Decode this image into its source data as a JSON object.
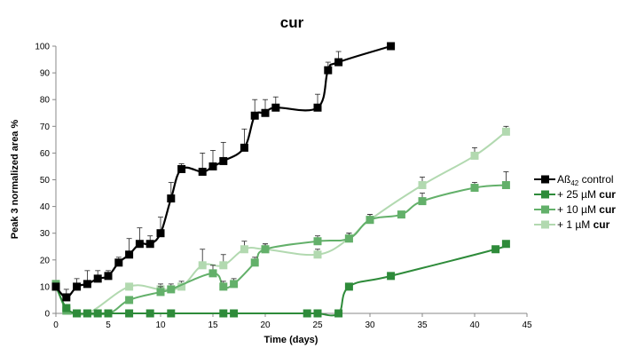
{
  "chart_data": {
    "type": "line",
    "title": "cur",
    "xlabel": "Time (days)",
    "ylabel": "Peak 3 normalized area %",
    "xlim": [
      0,
      45
    ],
    "ylim": [
      0,
      100
    ],
    "xticks": [
      "0",
      "5",
      "10",
      "15",
      "20",
      "25",
      "30",
      "35",
      "40",
      "45"
    ],
    "yticks": [
      "0",
      "10",
      "20",
      "30",
      "40",
      "50",
      "60",
      "70",
      "80",
      "90",
      "100"
    ],
    "grid": false,
    "legend_position": "right",
    "series": [
      {
        "name": "Aß42 control",
        "name_parts": [
          "Aß",
          "42",
          " control",
          ""
        ],
        "color": "#000000",
        "points": [
          [
            0,
            10
          ],
          [
            1,
            6
          ],
          [
            2,
            10
          ],
          [
            3,
            11
          ],
          [
            4,
            13
          ],
          [
            5,
            14
          ],
          [
            6,
            19
          ],
          [
            7,
            22
          ],
          [
            8,
            26
          ],
          [
            9,
            26
          ],
          [
            10,
            30
          ],
          [
            11,
            43
          ],
          [
            12,
            54
          ],
          [
            14,
            53
          ],
          [
            15,
            55
          ],
          [
            16,
            57
          ],
          [
            18,
            62
          ],
          [
            19,
            74
          ],
          [
            20,
            75
          ],
          [
            21,
            77
          ],
          [
            25,
            77
          ],
          [
            26,
            91
          ],
          [
            27,
            94
          ],
          [
            32,
            100
          ]
        ],
        "errors": [
          1,
          3,
          3,
          5,
          3,
          2,
          2,
          6,
          6,
          3,
          6,
          6,
          2,
          7,
          6,
          7,
          7,
          6,
          5,
          4,
          5,
          3,
          4,
          0
        ]
      },
      {
        "name": "+ 25 µM cur",
        "name_parts": [
          "+ 25 µM ",
          "",
          "",
          "cur"
        ],
        "color": "#2e8b3a",
        "points": [
          [
            0,
            10
          ],
          [
            1,
            2
          ],
          [
            2,
            0
          ],
          [
            3,
            0
          ],
          [
            4,
            0
          ],
          [
            5,
            0
          ],
          [
            7,
            0
          ],
          [
            9,
            0
          ],
          [
            11,
            0
          ],
          [
            16,
            0
          ],
          [
            17,
            0
          ],
          [
            24,
            0
          ],
          [
            25,
            0
          ],
          [
            27,
            0
          ],
          [
            28,
            10
          ],
          [
            32,
            14
          ],
          [
            42,
            24
          ],
          [
            43,
            26
          ]
        ],
        "errors": [
          0,
          0,
          0,
          0,
          0,
          0,
          0,
          0,
          0,
          0,
          0,
          0,
          0,
          0,
          0,
          0,
          1,
          0
        ]
      },
      {
        "name": "+ 10 µM cur",
        "name_parts": [
          "+ 10 µM ",
          "",
          "",
          "cur"
        ],
        "color": "#63b06a",
        "points": [
          [
            0,
            11
          ],
          [
            1,
            1
          ],
          [
            2,
            0
          ],
          [
            5,
            0
          ],
          [
            7,
            5
          ],
          [
            10,
            8
          ],
          [
            11,
            9
          ],
          [
            15,
            15
          ],
          [
            16,
            10
          ],
          [
            17,
            11
          ],
          [
            19,
            19
          ],
          [
            20,
            24
          ],
          [
            25,
            27
          ],
          [
            28,
            28
          ],
          [
            30,
            35
          ],
          [
            33,
            37
          ],
          [
            35,
            42
          ],
          [
            40,
            47
          ],
          [
            43,
            48
          ]
        ],
        "errors": [
          0,
          0,
          0,
          0,
          1,
          2,
          2,
          3,
          2,
          2,
          2,
          2,
          2,
          2,
          2,
          1,
          3,
          2,
          5
        ]
      },
      {
        "name": "+ 1 µM cur",
        "name_parts": [
          "+ 1 µM ",
          "",
          "",
          "cur"
        ],
        "color": "#b2d9b0",
        "points": [
          [
            0,
            11
          ],
          [
            1,
            2
          ],
          [
            3,
            0
          ],
          [
            7,
            10
          ],
          [
            10,
            9
          ],
          [
            12,
            10
          ],
          [
            14,
            18
          ],
          [
            16,
            18
          ],
          [
            18,
            24
          ],
          [
            20,
            24
          ],
          [
            25,
            22
          ],
          [
            28,
            28
          ],
          [
            30,
            35
          ],
          [
            35,
            48
          ],
          [
            40,
            59
          ],
          [
            43,
            68
          ]
        ],
        "errors": [
          0,
          0,
          0,
          1,
          2,
          2,
          6,
          4,
          3,
          2,
          2,
          2,
          2,
          3,
          3,
          2
        ]
      }
    ]
  }
}
